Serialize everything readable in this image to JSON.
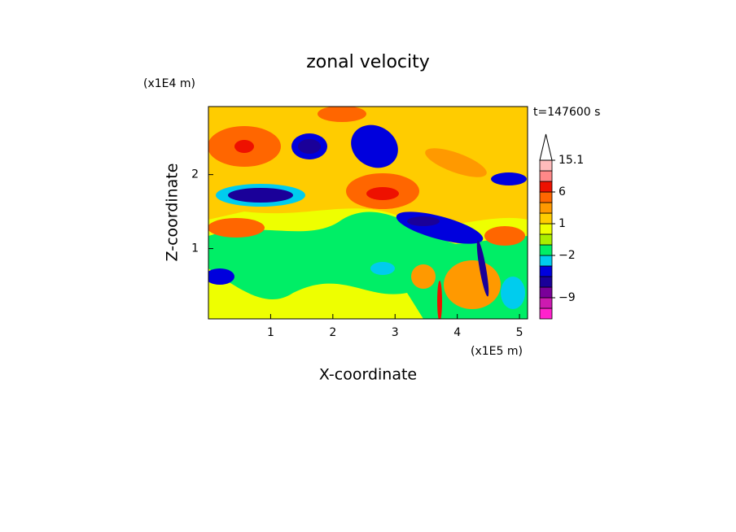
{
  "chart_data": {
    "type": "contourf",
    "title": "zonal velocity",
    "xlabel": "X-coordinate",
    "ylabel": "Z-coordinate",
    "x_unit": "(x1E5 m)",
    "y_unit": "(x1E4 m)",
    "annotation": "t=147600 s",
    "xlim": [
      0,
      5.13
    ],
    "xticks": [
      1,
      2,
      3,
      4,
      5
    ],
    "ylim": [
      0.05,
      2.92
    ],
    "yticks": [
      1,
      2
    ],
    "colorbar": {
      "levels": [
        -15,
        -12,
        -9,
        -7,
        -5,
        -3,
        -2,
        -1,
        0,
        1,
        2,
        4,
        6,
        9,
        12,
        15.1
      ],
      "colors": [
        "#ff22cc",
        "#cc1ab0",
        "#7a0099",
        "#1a0099",
        "#0000dd",
        "#00ccee",
        "#00ee66",
        "#aaee00",
        "#eeff00",
        "#ffcc00",
        "#ff9900",
        "#ff6600",
        "#ee1100",
        "#ff8888",
        "#ffbbbb"
      ],
      "extend_color": "#ffffff",
      "ticks": [
        15.1,
        6,
        1,
        {
          "value": -2,
          "label": "−2"
        },
        {
          "value": -9,
          "label": "−9"
        }
      ]
    }
  }
}
